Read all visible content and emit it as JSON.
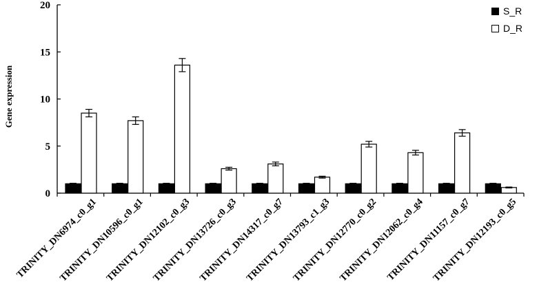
{
  "chart_data": {
    "type": "bar",
    "ylabel": "Gene expression",
    "xlabel": "",
    "ylim": [
      0,
      20
    ],
    "yticks": [
      0,
      5,
      10,
      15,
      20
    ],
    "grid": false,
    "legend_position": "top-right",
    "categories": [
      "TRINITY_DN6974_c0_g1",
      "TRINITY_DN10596_c0_g1",
      "TRINITY_DN12102_c0_g3",
      "TRINITY_DN13726_c0_g3",
      "TRINITY_DN14317_c0_g7",
      "TRINITY_DN13793_c1_g3",
      "TRINITY_DN12770_c0_g2",
      "TRINITY_DN12062_c0_g4",
      "TRINITY_DN11157_c0_g7",
      "TRINITY_DN12193_c0_g5"
    ],
    "series": [
      {
        "name": "S_R",
        "color": "#000000",
        "values": [
          1,
          1,
          1,
          1,
          1,
          1,
          1,
          1,
          1,
          1
        ],
        "errors": [
          0.05,
          0.05,
          0.05,
          0.05,
          0.05,
          0.05,
          0.05,
          0.05,
          0.05,
          0.05
        ]
      },
      {
        "name": "D_R",
        "color": "#ffffff",
        "values": [
          8.5,
          7.7,
          13.6,
          2.6,
          3.1,
          1.7,
          5.2,
          4.3,
          6.4,
          0.6
        ],
        "errors": [
          0.4,
          0.4,
          0.7,
          0.15,
          0.2,
          0.1,
          0.3,
          0.25,
          0.35,
          0.05
        ]
      }
    ]
  }
}
